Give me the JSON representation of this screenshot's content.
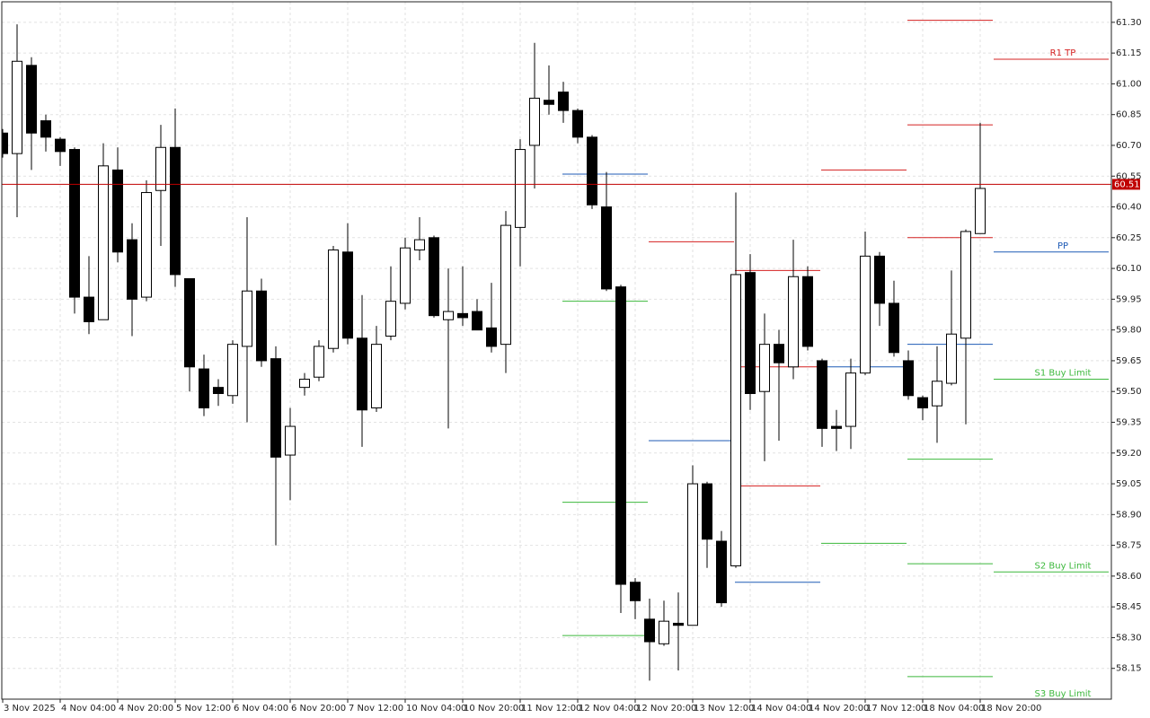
{
  "chart_data": {
    "type": "candlestick",
    "categories": [
      "3 Nov 2025",
      null,
      null,
      null,
      "4 Nov 04:00",
      null,
      null,
      null,
      "4 Nov 20:00",
      null,
      null,
      null,
      "5 Nov 12:00",
      null,
      null,
      null,
      "6 Nov 04:00",
      null,
      null,
      null,
      "6 Nov 20:00",
      null,
      null,
      null,
      "7 Nov 12:00",
      null,
      null,
      null,
      "10 Nov 04:00",
      null,
      null,
      null,
      "10 Nov 20:00",
      null,
      null,
      null,
      "11 Nov 12:00",
      null,
      null,
      null,
      "12 Nov 04:00",
      null,
      null,
      null,
      "12 Nov 20:00",
      null,
      null,
      null,
      "13 Nov 12:00",
      null,
      null,
      null,
      "14 Nov 04:00",
      null,
      null,
      null,
      "14 Nov 20:00",
      null,
      null,
      null,
      "17 Nov 12:00",
      null,
      null,
      null,
      "18 Nov 04:00",
      null,
      null,
      null,
      "18 Nov 20:00"
    ],
    "open": [
      60.76,
      60.66,
      61.09,
      60.82,
      60.73,
      60.68,
      59.96,
      59.85,
      60.58,
      60.24,
      59.96,
      60.48,
      60.69,
      60.05,
      59.61,
      59.52,
      59.48,
      59.72,
      59.99,
      59.66,
      59.19,
      59.52,
      59.57,
      59.71,
      60.18,
      59.76,
      59.42,
      59.77,
      59.93,
      60.19,
      60.25,
      59.85,
      59.88,
      59.89,
      59.81,
      59.73,
      60.3,
      60.7,
      60.92,
      60.96,
      60.87,
      60.74,
      60.4,
      60.01,
      58.57,
      58.39,
      58.27,
      58.37,
      58.36,
      59.05,
      58.77,
      58.65,
      60.08,
      59.5,
      59.73,
      59.62,
      60.06,
      59.65,
      59.33,
      59.33,
      59.59,
      60.16,
      59.93,
      59.65,
      59.47,
      59.43,
      59.54,
      59.76,
      60.27
    ],
    "high": [
      60.78,
      61.29,
      61.13,
      60.85,
      60.74,
      60.69,
      60.16,
      60.71,
      60.69,
      60.32,
      60.53,
      60.8,
      60.88,
      60.05,
      59.68,
      59.56,
      59.75,
      60.35,
      60.05,
      59.72,
      59.42,
      59.59,
      59.75,
      60.21,
      60.32,
      59.97,
      59.82,
      60.11,
      60.25,
      60.35,
      60.26,
      60.1,
      60.11,
      59.95,
      60.03,
      60.38,
      60.73,
      61.2,
      61.09,
      61.01,
      60.88,
      60.75,
      60.57,
      60.02,
      58.59,
      58.49,
      58.48,
      58.52,
      59.14,
      59.06,
      58.82,
      60.47,
      60.17,
      59.88,
      59.8,
      60.24,
      60.11,
      59.66,
      59.41,
      59.66,
      60.28,
      60.18,
      60.04,
      59.7,
      59.48,
      59.72,
      60.09,
      60.29,
      60.81
    ],
    "low": [
      60.64,
      60.35,
      60.58,
      60.67,
      60.6,
      59.88,
      59.78,
      59.85,
      60.13,
      59.77,
      59.94,
      60.21,
      60.01,
      59.5,
      59.38,
      59.43,
      59.44,
      59.35,
      59.62,
      58.75,
      58.97,
      59.48,
      59.55,
      59.69,
      59.73,
      59.23,
      59.4,
      59.75,
      59.9,
      60.14,
      59.86,
      59.32,
      59.82,
      59.8,
      59.69,
      59.59,
      60.11,
      60.49,
      60.85,
      60.81,
      60.71,
      60.39,
      59.99,
      58.42,
      58.39,
      58.09,
      58.26,
      58.14,
      58.36,
      58.64,
      58.45,
      58.64,
      59.41,
      59.16,
      59.26,
      59.56,
      59.7,
      59.23,
      59.21,
      59.22,
      59.58,
      59.82,
      59.67,
      59.46,
      59.36,
      59.25,
      59.53,
      59.34,
      60.27
    ],
    "close": [
      60.66,
      61.11,
      60.76,
      60.74,
      60.67,
      59.96,
      59.84,
      60.6,
      60.18,
      59.95,
      60.47,
      60.69,
      60.07,
      59.62,
      59.42,
      59.49,
      59.73,
      59.99,
      59.65,
      59.18,
      59.33,
      59.56,
      59.72,
      60.19,
      59.76,
      59.41,
      59.73,
      59.94,
      60.2,
      60.24,
      59.87,
      59.89,
      59.86,
      59.8,
      59.72,
      60.31,
      60.68,
      60.93,
      60.9,
      60.87,
      60.74,
      60.41,
      60.0,
      58.56,
      58.48,
      58.28,
      58.38,
      58.36,
      59.05,
      58.78,
      58.47,
      60.07,
      59.49,
      59.73,
      59.64,
      60.06,
      59.72,
      59.32,
      59.32,
      59.59,
      60.16,
      59.93,
      59.69,
      59.48,
      59.42,
      59.55,
      59.78,
      60.28,
      60.49
    ],
    "ylim": [
      58.0,
      61.4
    ],
    "yticks": [
      {
        "value": 61.3,
        "label": "61.30"
      },
      {
        "value": 61.15,
        "label": "61.15"
      },
      {
        "value": 61.0,
        "label": "61.00"
      },
      {
        "value": 60.85,
        "label": "60.85"
      },
      {
        "value": 60.7,
        "label": "60.70"
      },
      {
        "value": 60.55,
        "label": "60.55"
      },
      {
        "value": 60.4,
        "label": "60.40"
      },
      {
        "value": 60.25,
        "label": "60.25"
      },
      {
        "value": 60.1,
        "label": "60.10"
      },
      {
        "value": 59.95,
        "label": "59.95"
      },
      {
        "value": 59.8,
        "label": "59.80"
      },
      {
        "value": 59.65,
        "label": "59.65"
      },
      {
        "value": 59.5,
        "label": "59.50"
      },
      {
        "value": 59.35,
        "label": "59.35"
      },
      {
        "value": 59.2,
        "label": "59.20"
      },
      {
        "value": 59.05,
        "label": "59.05"
      },
      {
        "value": 58.9,
        "label": "58.90"
      },
      {
        "value": 58.75,
        "label": "58.75"
      },
      {
        "value": 58.6,
        "label": "58.60"
      },
      {
        "value": 58.45,
        "label": "58.45"
      },
      {
        "value": 58.3,
        "label": "58.30"
      },
      {
        "value": 58.15,
        "label": "58.15"
      }
    ],
    "grid": true,
    "price_line": {
      "value": 60.51,
      "label": "60.51",
      "color": "#c00000"
    },
    "pivot_days": [
      {
        "levels": [
          {
            "value": 60.56,
            "color": "#1f5bb5"
          },
          {
            "value": 59.94,
            "color": "#3cb83c"
          },
          {
            "value": 58.96,
            "color": "#3cb83c"
          },
          {
            "value": 58.31,
            "color": "#3cb83c"
          }
        ]
      },
      {
        "levels": [
          {
            "value": 60.23,
            "color": "#d42020"
          },
          {
            "value": 59.26,
            "color": "#1f5bb5"
          }
        ]
      },
      {
        "levels": [
          {
            "value": 60.09,
            "color": "#d42020"
          },
          {
            "value": 59.62,
            "color": "#d42020"
          },
          {
            "value": 59.04,
            "color": "#d42020"
          },
          {
            "value": 58.57,
            "color": "#1f5bb5"
          }
        ]
      },
      {
        "levels": [
          {
            "value": 60.58,
            "color": "#d42020"
          },
          {
            "value": 59.62,
            "color": "#1f5bb5"
          },
          {
            "value": 58.76,
            "color": "#3cb83c"
          }
        ]
      },
      {
        "levels": [
          {
            "value": 61.31,
            "color": "#d42020"
          },
          {
            "value": 60.8,
            "color": "#d42020"
          },
          {
            "value": 60.25,
            "color": "#d42020"
          },
          {
            "value": 59.73,
            "color": "#1f5bb5"
          },
          {
            "value": 59.17,
            "color": "#3cb83c"
          },
          {
            "value": 58.66,
            "color": "#3cb83c"
          },
          {
            "value": 58.11,
            "color": "#3cb83c"
          }
        ]
      }
    ],
    "projected_levels": [
      {
        "value": 61.12,
        "label": "R1 TP",
        "color": "#d42020"
      },
      {
        "value": 60.18,
        "label": "PP",
        "color": "#1f5bb5"
      },
      {
        "value": 59.56,
        "label": "S1 Buy Limit",
        "color": "#3cb83c"
      },
      {
        "value": 58.62,
        "label": "S2 Buy Limit",
        "color": "#3cb83c"
      },
      {
        "value": 57.99,
        "label": "S3 Buy Limit",
        "color": "#3cb83c"
      }
    ]
  }
}
